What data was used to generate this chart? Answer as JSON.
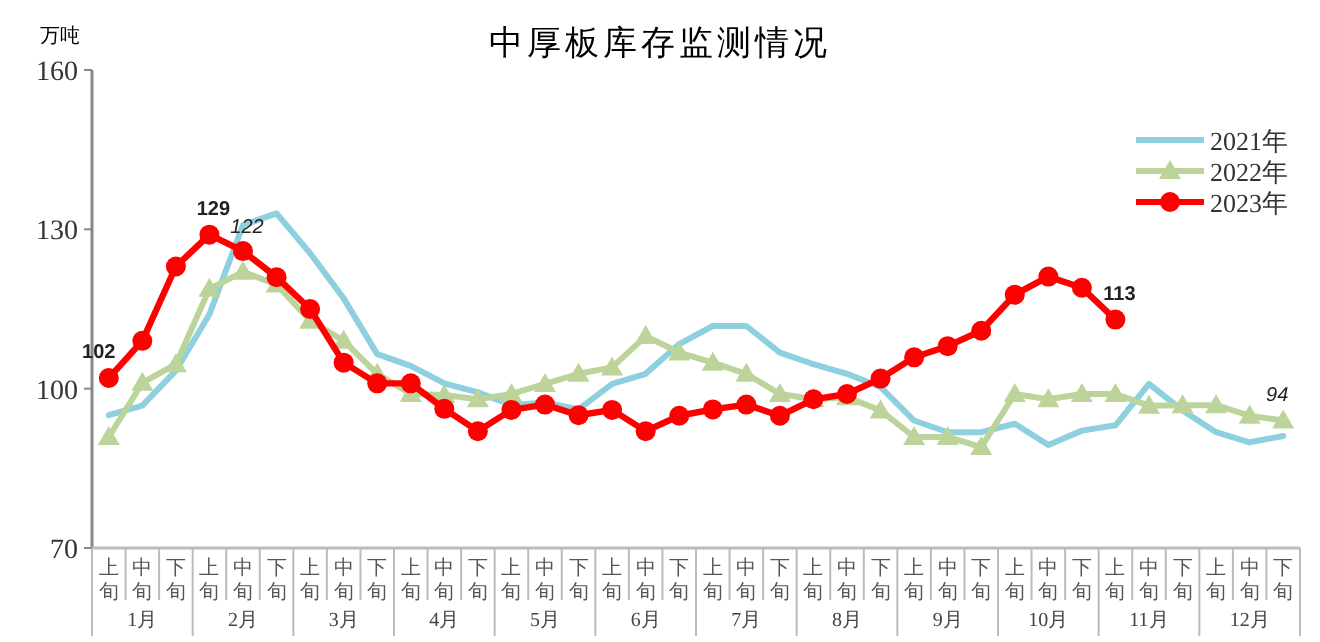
{
  "chart_data": {
    "type": "line",
    "title": "中厚板库存监测情况",
    "ylabel": "万吨",
    "categories": [
      "上旬",
      "中旬",
      "下旬",
      "上旬",
      "中旬",
      "下旬",
      "上旬",
      "中旬",
      "下旬",
      "上旬",
      "中旬",
      "下旬",
      "上旬",
      "中旬",
      "下旬",
      "上旬",
      "中旬",
      "下旬",
      "上旬",
      "中旬",
      "下旬",
      "上旬",
      "中旬",
      "下旬",
      "上旬",
      "中旬",
      "下旬",
      "上旬",
      "中旬",
      "下旬",
      "上旬",
      "中旬",
      "下旬",
      "上旬",
      "中旬",
      "下旬"
    ],
    "annotations": [
      "1月",
      "2月",
      "3月",
      "4月",
      "5月",
      "6月",
      "7月",
      "8月",
      "9月",
      "10月",
      "11月",
      "12月"
    ],
    "series": [
      {
        "name": "2021年",
        "color": "#8ecfe0",
        "marker": "none",
        "values": [
          95,
          96.8,
          103.4,
          114,
          130.8,
          133,
          125.5,
          117,
          106.5,
          104.3,
          101,
          99.3,
          96.9,
          97.4,
          96.1,
          100.9,
          102.8,
          108.4,
          111.8,
          111.8,
          106.8,
          104.6,
          102.8,
          100.3,
          94,
          91.8,
          91.8,
          93.4,
          89.4,
          92.1,
          93.1,
          100.9,
          95.9,
          91.8,
          89.9,
          91.1
        ]
      },
      {
        "name": "2022年",
        "color": "#bcd49a",
        "marker": "triangle",
        "values": [
          90.9,
          101.1,
          104.6,
          118.8,
          122,
          119.6,
          112.8,
          109,
          102.8,
          99,
          98.8,
          98,
          99,
          100.9,
          102.8,
          104,
          109.9,
          106.8,
          104.9,
          102.8,
          99,
          98,
          98.4,
          95.9,
          90.9,
          90.9,
          89,
          99,
          98,
          99,
          99,
          96.8,
          96.9,
          96.9,
          94.9,
          94
        ],
        "value_labels": [
          null,
          null,
          null,
          null,
          "122",
          null,
          null,
          null,
          null,
          null,
          null,
          null,
          null,
          null,
          null,
          null,
          null,
          null,
          null,
          null,
          null,
          null,
          null,
          null,
          null,
          null,
          null,
          null,
          null,
          null,
          null,
          null,
          null,
          null,
          null,
          "94"
        ]
      },
      {
        "name": "2023年",
        "color": "#ff0000",
        "marker": "circle",
        "values": [
          102,
          109,
          123,
          129,
          125.9,
          121,
          115,
          104.9,
          101,
          101,
          96.2,
          92,
          96,
          97,
          95,
          96,
          92,
          94.9,
          96.1,
          97,
          94.9,
          98,
          99,
          101.9,
          105.9,
          108,
          110.9,
          117.7,
          121.1,
          119,
          113,
          null,
          null,
          null,
          null,
          null
        ],
        "value_labels": [
          "102",
          null,
          null,
          "129",
          null,
          null,
          null,
          null,
          null,
          null,
          null,
          null,
          null,
          null,
          null,
          null,
          null,
          null,
          null,
          null,
          null,
          null,
          null,
          null,
          null,
          null,
          null,
          null,
          null,
          null,
          "113",
          null,
          null,
          null,
          null,
          null
        ]
      }
    ],
    "ylim": [
      70,
      160
    ],
    "yticks": [
      70,
      100,
      130,
      160
    ],
    "grid": false,
    "legend": "top right"
  }
}
